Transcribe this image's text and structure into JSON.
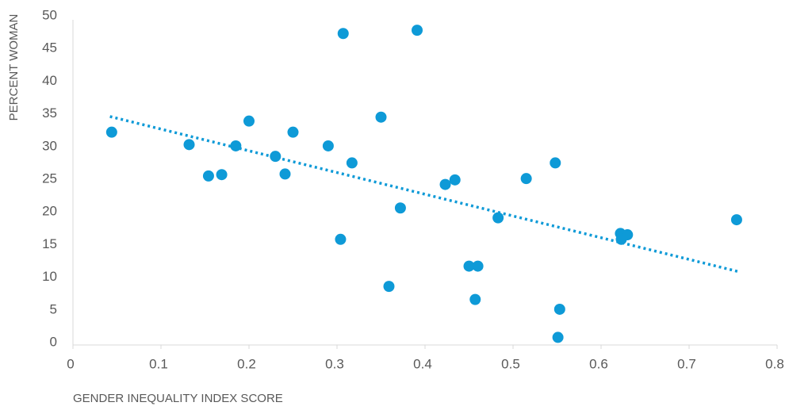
{
  "chart_data": {
    "type": "scatter",
    "xlabel": "GENDER INEQUALITY INDEX SCORE",
    "ylabel": "PERCENT WOMAN",
    "color": "#0e9ad7",
    "x": [
      0.044,
      0.132,
      0.154,
      0.169,
      0.185,
      0.2,
      0.23,
      0.241,
      0.25,
      0.29,
      0.307,
      0.304,
      0.317,
      0.35,
      0.359,
      0.372,
      0.391,
      0.423,
      0.434,
      0.45,
      0.46,
      0.457,
      0.483,
      0.515,
      0.548,
      0.553,
      0.551,
      0.622,
      0.623,
      0.63,
      0.754
    ],
    "values": [
      32.2,
      30.3,
      25.5,
      25.7,
      30.1,
      33.9,
      28.5,
      25.8,
      32.2,
      30.1,
      47.3,
      15.8,
      27.5,
      34.5,
      8.6,
      20.6,
      47.8,
      24.2,
      24.9,
      11.7,
      11.7,
      6.6,
      19.1,
      25.1,
      27.5,
      5.1,
      0.8,
      16.7,
      15.8,
      16.5,
      18.8
    ],
    "trendline": {
      "x": [
        0.042,
        0.755
      ],
      "values": [
        34.6,
        10.9
      ]
    },
    "xlim": [
      0,
      0.8
    ],
    "xticks": [
      0,
      0.1,
      0.2,
      0.3,
      0.4,
      0.5,
      0.6,
      0.7,
      0.8
    ],
    "ylim": [
      0,
      50
    ],
    "yticks": [
      0,
      5,
      10,
      15,
      20,
      25,
      30,
      35,
      40,
      45,
      50
    ]
  }
}
